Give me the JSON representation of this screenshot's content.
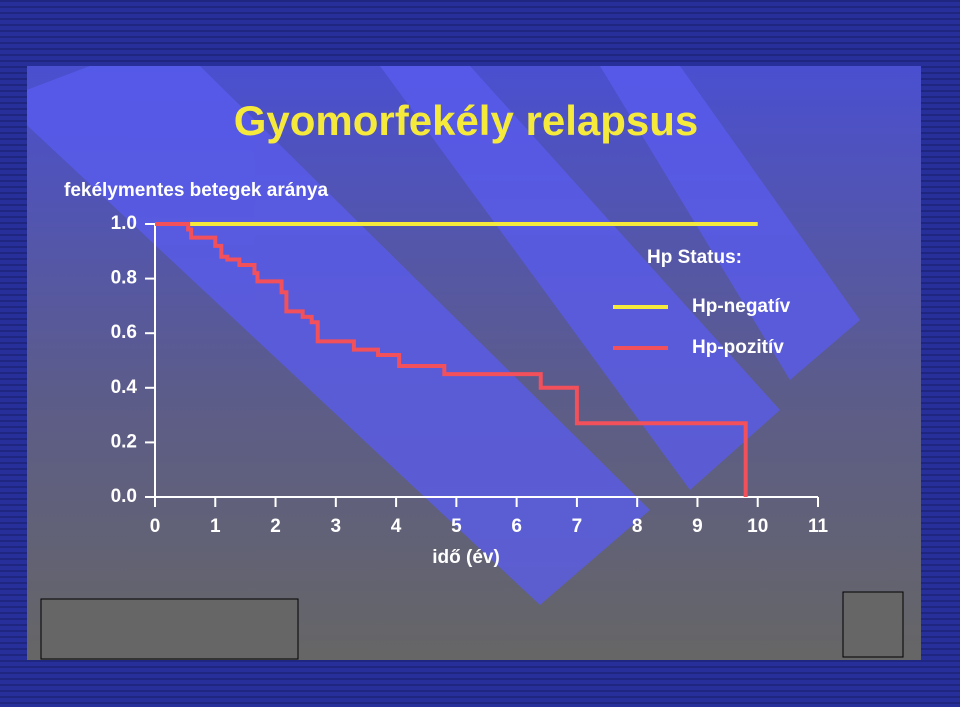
{
  "chart_data": {
    "type": "line",
    "step": true,
    "title": "Gyomorfekély relapsus",
    "y_label": "fekélymentes betegek aránya",
    "x_label": "idő (év)",
    "legend_title": "Hp Status:",
    "xlim": [
      0,
      11
    ],
    "ylim": [
      0,
      1
    ],
    "xticks": [
      0,
      1,
      2,
      3,
      4,
      5,
      6,
      7,
      8,
      9,
      10,
      11
    ],
    "yticks": [
      {
        "value": 0,
        "label": "0.0"
      },
      0.2,
      0.4,
      0.6,
      0.8,
      {
        "value": 1,
        "label": "1.0"
      }
    ],
    "series": [
      {
        "name": "Hp-negatív",
        "color": "#f5ea3c",
        "x": [
          0,
          10
        ],
        "values": [
          1,
          1
        ]
      },
      {
        "name": "Hp-pozitív",
        "color": "#f2505a",
        "x": [
          0,
          0.55,
          0.6,
          1.0,
          1.1,
          1.2,
          1.4,
          1.65,
          1.7,
          2.1,
          2.18,
          2.45,
          2.6,
          2.7,
          3.3,
          3.7,
          4.05,
          4.8,
          6.4,
          7.0,
          9.8
        ],
        "values": [
          1,
          0.98,
          0.95,
          0.92,
          0.88,
          0.87,
          0.85,
          0.82,
          0.79,
          0.75,
          0.68,
          0.66,
          0.64,
          0.57,
          0.54,
          0.52,
          0.48,
          0.45,
          0.4,
          0.27,
          0
        ]
      }
    ]
  }
}
